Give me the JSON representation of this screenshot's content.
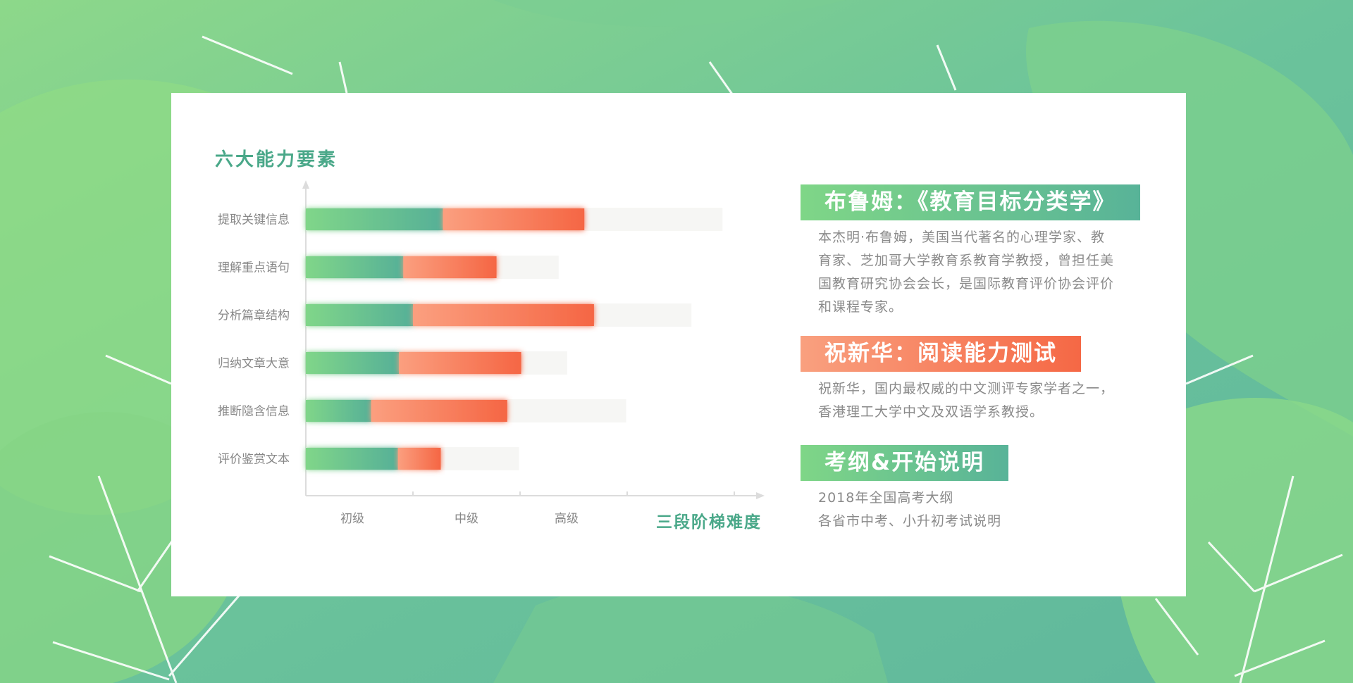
{
  "colors": {
    "accent_green": "#4aa889",
    "green_start": "#80d689",
    "green_end": "#56b097",
    "orange_start": "#fb9f7f",
    "orange_end": "#f56644",
    "track": "#f6f6f4",
    "axis": "#dcdcdc",
    "label": "#888888"
  },
  "chart_data": {
    "type": "bar",
    "orientation": "horizontal",
    "stacked": true,
    "title": "六大能力要素",
    "x_axis_title": "三段阶梯难度",
    "tick_labels": [
      "初级",
      "中级",
      "高级"
    ],
    "categories": [
      "提取关键信息",
      "理解重点语句",
      "分析篇章结构",
      "归纳文章大意",
      "推断隐含信息",
      "评价鉴赏文本"
    ],
    "xlim": [
      0,
      4
    ],
    "series": [
      {
        "color": "green",
        "values": [
          1.28,
          0.91,
          1.0,
          0.87,
          0.61,
          0.86
        ]
      },
      {
        "color": "orange",
        "values": [
          1.32,
          0.87,
          1.69,
          1.14,
          1.27,
          0.4
        ]
      },
      {
        "color": "track",
        "values": [
          1.29,
          0.58,
          0.91,
          0.43,
          1.11,
          0.73
        ]
      }
    ],
    "grid": false,
    "legend": "none"
  },
  "sections": [
    {
      "heading": "布鲁姆：《教育目标分类学》",
      "style": "green",
      "lines": [
        "本杰明·布鲁姆，美国当代著名的心理学家、教",
        "育家、芝加哥大学教育系教育学教授，曾担任美",
        "国教育研究协会会长，是国际教育评价协会评价",
        "和课程专家。"
      ]
    },
    {
      "heading": "祝新华：阅读能力测试",
      "style": "orange",
      "lines": [
        "祝新华，国内最权威的中文测评专家学者之一，",
        "香港理工大学中文及双语学系教授。"
      ]
    },
    {
      "heading": "考纲&开始说明",
      "style": "green",
      "lines": [
        "2018年全国高考大纲",
        "各省市中考、小升初考试说明"
      ]
    }
  ]
}
